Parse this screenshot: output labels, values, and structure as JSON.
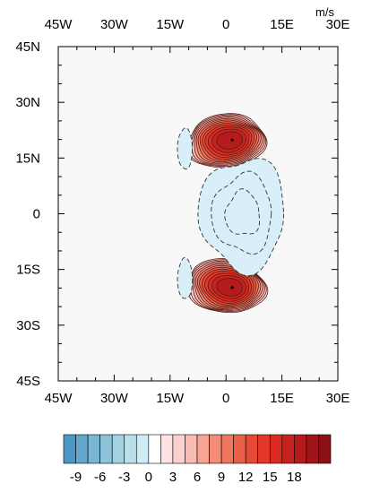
{
  "chart_data": {
    "type": "contour_map",
    "units_label": "m/s",
    "x": {
      "range": [
        -45,
        30
      ],
      "ticks": [
        -45,
        -30,
        -15,
        0,
        15,
        30
      ],
      "tick_labels": [
        "45W",
        "30W",
        "15W",
        "0",
        "15E",
        "30E"
      ],
      "minor_step": 5
    },
    "y": {
      "range": [
        -45,
        45
      ],
      "ticks": [
        45,
        30,
        15,
        0,
        -15,
        -30,
        -45
      ],
      "tick_labels": [
        "45N",
        "30N",
        "15N",
        "0",
        "15S",
        "30S",
        "45S"
      ],
      "minor_step": 5
    },
    "features": [
      {
        "kind": "positive",
        "lon": 0,
        "lat": 19.5,
        "peak": 20,
        "rx": 11,
        "ry": 7.5
      },
      {
        "kind": "positive",
        "lon": 0,
        "lat": -19.5,
        "peak": 20,
        "rx": 11,
        "ry": 7.5
      },
      {
        "kind": "negative",
        "lon": 4.5,
        "lat": 0,
        "trough": -3,
        "rx": 11.5,
        "ry": 15
      },
      {
        "kind": "negative",
        "lon": -11,
        "lat": 17.5,
        "trough": -1.5,
        "rx": 2,
        "ry": 5.5
      },
      {
        "kind": "negative",
        "lon": -11,
        "lat": -17.5,
        "trough": -1.5,
        "rx": 2,
        "ry": 5.5
      }
    ],
    "contour_interval": 1.5,
    "colorbar": {
      "tick_labels": [
        "-9",
        "-6",
        "-3",
        "0",
        "3",
        "6",
        "9",
        "12",
        "15",
        "18"
      ],
      "tick_values": [
        -9,
        -6,
        -3,
        0,
        3,
        6,
        9,
        12,
        15,
        18
      ],
      "levels_min": -10.5,
      "levels_max": 21,
      "level_step": 1.5,
      "colors": [
        "#4d97c4",
        "#63a7cd",
        "#79b6d4",
        "#8ec4db",
        "#a3d2e3",
        "#b9e0ea",
        "#cfecf4",
        "#ffffff",
        "#fde3e3",
        "#fcd0cc",
        "#f9bcb4",
        "#f6a595",
        "#f38d7a",
        "#ef765f",
        "#eb5f48",
        "#e84935",
        "#e53728",
        "#d92b22",
        "#c8221f",
        "#b51b1c",
        "#a0151a",
        "#8a1015"
      ]
    },
    "fill_colors": {
      "positive_low": "#fde3e3",
      "negative": "#d8eef9"
    }
  }
}
